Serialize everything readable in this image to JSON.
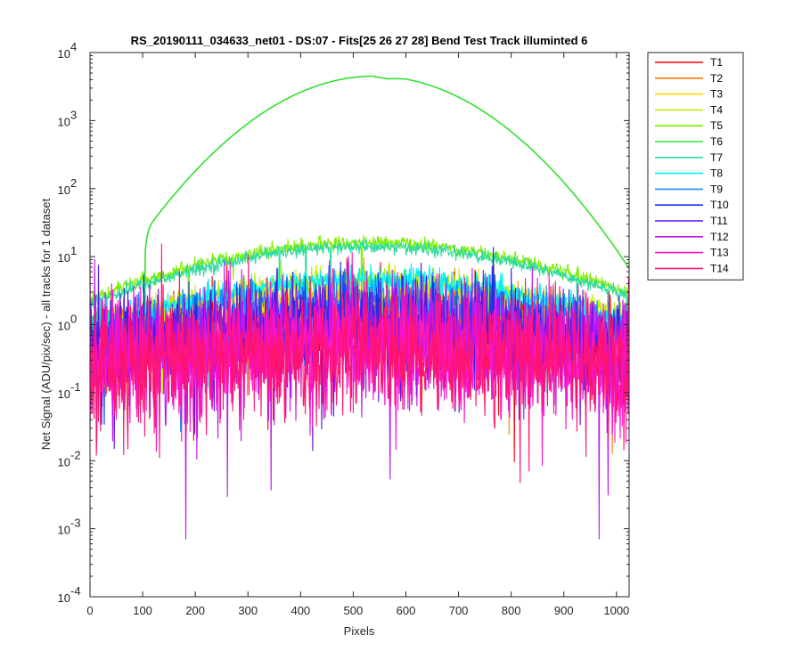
{
  "chart_data": {
    "type": "line",
    "title": "RS_20190111_034633_net01 - DS:07 - Fits[25   26   27   28]    Bend Test        Track illuminted 6",
    "xlabel": "Pixels",
    "ylabel": "Net Signal (ADU/pix/sec) - all tracks for 1 dataset",
    "xlim": [
      0,
      1024
    ],
    "ylim": [
      0.0001,
      10000
    ],
    "yscale": "log",
    "xticks": [
      "0",
      "100",
      "200",
      "300",
      "400",
      "500",
      "600",
      "700",
      "800",
      "900",
      "1000"
    ],
    "yticks": [
      {
        "base": "10",
        "exp": "-4"
      },
      {
        "base": "10",
        "exp": "-3"
      },
      {
        "base": "10",
        "exp": "-2"
      },
      {
        "base": "10",
        "exp": "-1"
      },
      {
        "base": "10",
        "exp": "0"
      },
      {
        "base": "10",
        "exp": "1"
      },
      {
        "base": "10",
        "exp": "2"
      },
      {
        "base": "10",
        "exp": "3"
      },
      {
        "base": "10",
        "exp": "4"
      }
    ],
    "grid": false,
    "legend_position": "outside-top-right",
    "series": [
      {
        "name": "T1",
        "color": "#ff0000",
        "peak": 1.0,
        "base": 0.3,
        "noise": 0.3
      },
      {
        "name": "T2",
        "color": "#ff7f00",
        "peak": 1.5,
        "base": 0.35,
        "noise": 0.25
      },
      {
        "name": "T3",
        "color": "#ffd700",
        "peak": 2.0,
        "base": 0.4,
        "noise": 0.22
      },
      {
        "name": "T4",
        "color": "#bfef00",
        "peak": 4.5,
        "base": 0.6,
        "noise": 0.1
      },
      {
        "name": "T5",
        "color": "#7fef00",
        "peak": 16,
        "base": 0.7,
        "noise": 0.05
      },
      {
        "name": "T6",
        "color": "#33e033",
        "peak": 4500,
        "base": 0.9,
        "noise": 0.01
      },
      {
        "name": "T7",
        "color": "#2fdca0",
        "peak": 14,
        "base": 0.6,
        "noise": 0.05
      },
      {
        "name": "T8",
        "color": "#00f0f0",
        "peak": 4.6,
        "base": 0.5,
        "noise": 0.1
      },
      {
        "name": "T9",
        "color": "#1a8cff",
        "peak": 2.3,
        "base": 0.45,
        "noise": 0.2
      },
      {
        "name": "T10",
        "color": "#1433e0",
        "peak": 1.3,
        "base": 0.4,
        "noise": 0.3
      },
      {
        "name": "T11",
        "color": "#5a14e6",
        "peak": 0.9,
        "base": 0.35,
        "noise": 0.35
      },
      {
        "name": "T12",
        "color": "#c014f0",
        "peak": 0.6,
        "base": 0.3,
        "noise": 0.45
      },
      {
        "name": "T13",
        "color": "#ff14c8",
        "peak": 0.45,
        "base": 0.25,
        "noise": 0.45
      },
      {
        "name": "T14",
        "color": "#ff1470",
        "peak": 0.4,
        "base": 0.25,
        "noise": 0.45
      }
    ]
  }
}
